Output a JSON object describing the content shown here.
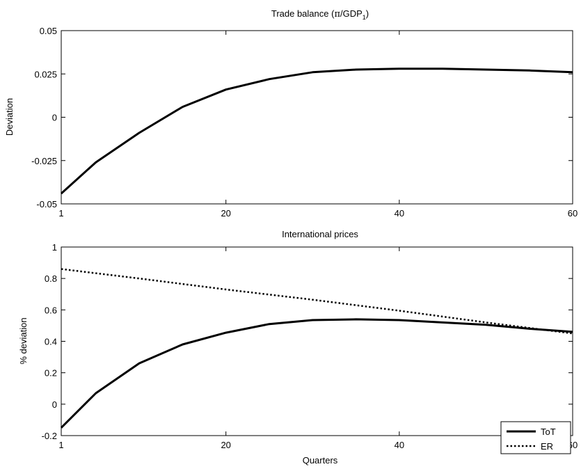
{
  "chart_data": [
    {
      "type": "line",
      "title_main": "Trade balance (",
      "title_pi": "π",
      "title_mid": "/GDP",
      "title_sub": "1",
      "title_end": ")",
      "xlabel": "",
      "ylabel": "Deviation",
      "xlim": [
        1,
        60
      ],
      "ylim": [
        -0.05,
        0.05
      ],
      "xticks": [
        1,
        20,
        40,
        60
      ],
      "xtick_labels": [
        "1",
        "20",
        "40",
        "60"
      ],
      "yticks": [
        -0.05,
        -0.025,
        0,
        0.025,
        0.05
      ],
      "ytick_labels": [
        "-0.05",
        "-0.025",
        "0",
        "0.025",
        "0.05"
      ],
      "grid": false,
      "series": [
        {
          "x": [
            1,
            5,
            10,
            15,
            20,
            25,
            30,
            35,
            40,
            45,
            50,
            55,
            60
          ],
          "y": [
            -0.044,
            -0.026,
            -0.009,
            0.006,
            0.016,
            0.022,
            0.026,
            0.0275,
            0.028,
            0.028,
            0.0275,
            0.027,
            0.026
          ],
          "style": "solid",
          "color": "#000000"
        }
      ]
    },
    {
      "type": "line",
      "title": "International prices",
      "xlabel": "Quarters",
      "ylabel": "% deviation",
      "xlim": [
        1,
        60
      ],
      "ylim": [
        -0.2,
        1
      ],
      "xticks": [
        1,
        20,
        40,
        60
      ],
      "xtick_labels": [
        "1",
        "20",
        "40",
        "60"
      ],
      "yticks": [
        -0.2,
        0,
        0.2,
        0.4,
        0.6,
        0.8,
        1
      ],
      "ytick_labels": [
        "-0.2",
        "0",
        "0.2",
        "0.4",
        "0.6",
        "0.8",
        "1"
      ],
      "grid": false,
      "legend": "bottom-right",
      "series": [
        {
          "name": "ToT",
          "style": "solid",
          "color": "#000000",
          "x": [
            1,
            5,
            10,
            15,
            20,
            25,
            30,
            35,
            40,
            45,
            50,
            55,
            60
          ],
          "y": [
            -0.15,
            0.07,
            0.26,
            0.38,
            0.455,
            0.51,
            0.535,
            0.54,
            0.535,
            0.52,
            0.505,
            0.48,
            0.46
          ]
        },
        {
          "name": "ER",
          "style": "dotted",
          "color": "#000000",
          "x": [
            1,
            10,
            20,
            30,
            40,
            50,
            60
          ],
          "y": [
            0.86,
            0.8,
            0.73,
            0.665,
            0.595,
            0.52,
            0.45
          ]
        }
      ]
    }
  ]
}
